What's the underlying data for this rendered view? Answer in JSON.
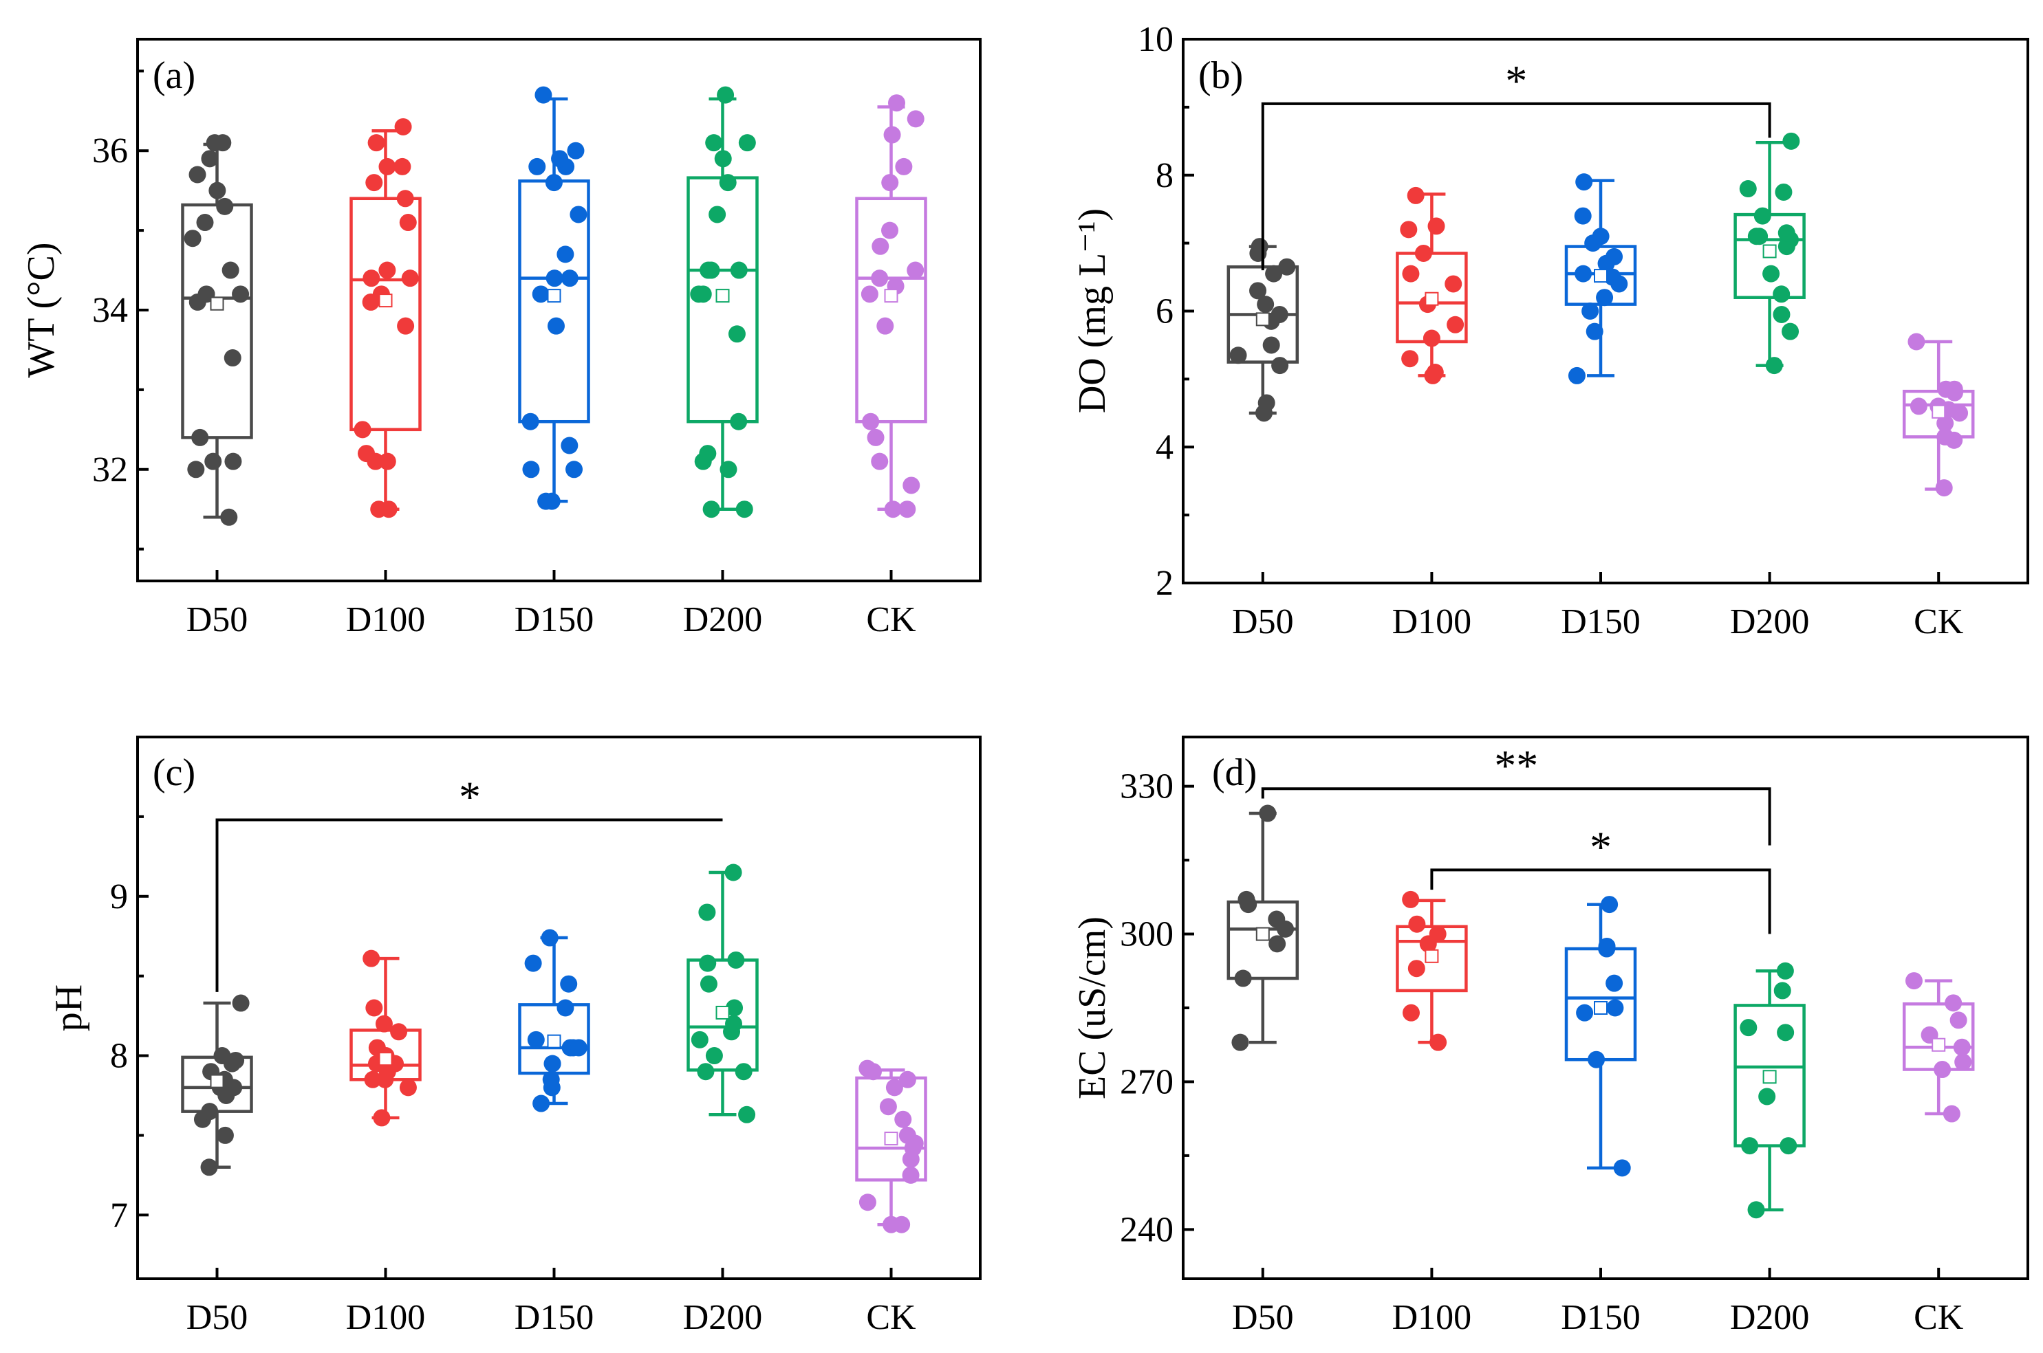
{
  "chart_data": [
    {
      "panel_label": "(a)",
      "type": "box",
      "ylabel": "WT (°C)",
      "ylim": [
        30.6,
        37.4
      ],
      "yticks": [
        32,
        34,
        36
      ],
      "categories": [
        "D50",
        "D100",
        "D150",
        "D200",
        "CK"
      ],
      "colors": [
        "#4a4a4a",
        "#f03a3a",
        "#0a67d8",
        "#0da866",
        "#c57ae0"
      ],
      "boxes": [
        {
          "whisker_low": 31.4,
          "q1": 32.4,
          "median": 34.15,
          "q3": 35.32,
          "whisker_high": 36.08,
          "mean": 34.08
        },
        {
          "whisker_low": 31.5,
          "q1": 32.5,
          "median": 34.38,
          "q3": 35.4,
          "whisker_high": 36.25,
          "mean": 34.12
        },
        {
          "whisker_low": 31.6,
          "q1": 32.6,
          "median": 34.4,
          "q3": 35.62,
          "whisker_high": 36.65,
          "mean": 34.18
        },
        {
          "whisker_low": 31.5,
          "q1": 32.6,
          "median": 34.5,
          "q3": 35.66,
          "whisker_high": 36.65,
          "mean": 34.18
        },
        {
          "whisker_low": 31.5,
          "q1": 32.6,
          "median": 34.4,
          "q3": 35.4,
          "whisker_high": 36.55,
          "mean": 34.18
        }
      ],
      "points": [
        [
          31.4,
          32.0,
          32.1,
          32.1,
          32.4,
          33.4,
          34.1,
          34.2,
          34.2,
          34.5,
          34.9,
          35.1,
          35.3,
          35.5,
          35.7,
          35.9,
          36.1,
          36.1
        ],
        [
          31.5,
          31.5,
          32.1,
          32.1,
          32.2,
          32.5,
          33.8,
          34.1,
          34.2,
          34.4,
          34.4,
          34.5,
          35.1,
          35.4,
          35.6,
          35.8,
          35.8,
          36.1,
          36.3
        ],
        [
          31.6,
          31.6,
          32.0,
          32.0,
          32.3,
          32.6,
          33.8,
          34.2,
          34.4,
          34.4,
          34.7,
          35.2,
          35.6,
          35.8,
          35.8,
          35.9,
          36.0,
          36.7
        ],
        [
          31.5,
          31.5,
          32.0,
          32.1,
          32.2,
          32.6,
          33.7,
          34.2,
          34.2,
          34.5,
          34.5,
          34.5,
          35.2,
          35.6,
          35.9,
          36.1,
          36.1,
          36.7
        ],
        [
          31.5,
          31.5,
          31.8,
          32.1,
          32.4,
          32.6,
          33.8,
          34.2,
          34.3,
          34.4,
          34.5,
          34.8,
          35.0,
          35.6,
          35.8,
          36.2,
          36.4,
          36.6
        ]
      ],
      "significance": []
    },
    {
      "panel_label": "(b)",
      "type": "box",
      "ylabel": "DO (mg L⁻¹)",
      "ylim": [
        2,
        10
      ],
      "yticks": [
        2,
        4,
        6,
        8,
        10
      ],
      "categories": [
        "D50",
        "D100",
        "D150",
        "D200",
        "CK"
      ],
      "colors": [
        "#4a4a4a",
        "#f03a3a",
        "#0a67d8",
        "#0da866",
        "#c57ae0"
      ],
      "boxes": [
        {
          "whisker_low": 4.5,
          "q1": 5.25,
          "median": 5.95,
          "q3": 6.65,
          "whisker_high": 6.95,
          "mean": 5.88
        },
        {
          "whisker_low": 5.05,
          "q1": 5.55,
          "median": 6.12,
          "q3": 6.85,
          "whisker_high": 7.72,
          "mean": 6.18
        },
        {
          "whisker_low": 5.05,
          "q1": 6.1,
          "median": 6.55,
          "q3": 6.95,
          "whisker_high": 7.92,
          "mean": 6.52
        },
        {
          "whisker_low": 5.2,
          "q1": 6.2,
          "median": 7.05,
          "q3": 7.42,
          "whisker_high": 8.48,
          "mean": 6.88
        },
        {
          "whisker_low": 3.38,
          "q1": 4.15,
          "median": 4.62,
          "q3": 4.82,
          "whisker_high": 5.55,
          "mean": 4.52
        }
      ],
      "points": [
        [
          4.5,
          4.65,
          5.2,
          5.35,
          5.5,
          5.85,
          5.95,
          6.1,
          6.3,
          6.55,
          6.65,
          6.85,
          6.95
        ],
        [
          5.05,
          5.1,
          5.3,
          5.6,
          5.8,
          6.1,
          6.4,
          6.55,
          6.85,
          7.2,
          7.25,
          7.7
        ],
        [
          5.05,
          5.7,
          6.0,
          6.2,
          6.4,
          6.5,
          6.55,
          6.7,
          6.8,
          7.0,
          7.1,
          7.4,
          7.9
        ],
        [
          5.2,
          5.7,
          5.95,
          6.25,
          6.55,
          6.95,
          7.05,
          7.1,
          7.1,
          7.15,
          7.4,
          7.75,
          7.8,
          8.5
        ],
        [
          3.4,
          4.1,
          4.15,
          4.35,
          4.5,
          4.55,
          4.6,
          4.6,
          4.8,
          4.85,
          4.85,
          5.55
        ]
      ],
      "significance": [
        {
          "from": "D50",
          "to": "D200",
          "label": "*",
          "level": 9.05,
          "from_start": 6.6,
          "to_start": 8.55
        }
      ]
    },
    {
      "panel_label": "(c)",
      "type": "box",
      "ylabel": "pH",
      "ylim": [
        6.6,
        10.0
      ],
      "yticks": [
        7,
        8,
        9
      ],
      "categories": [
        "D50",
        "D100",
        "D150",
        "D200",
        "CK"
      ],
      "colors": [
        "#4a4a4a",
        "#f03a3a",
        "#0a67d8",
        "#0da866",
        "#c57ae0"
      ],
      "boxes": [
        {
          "whisker_low": 7.3,
          "q1": 7.65,
          "median": 7.8,
          "q3": 7.99,
          "whisker_high": 8.33,
          "mean": 7.84
        },
        {
          "whisker_low": 7.61,
          "q1": 7.85,
          "median": 7.94,
          "q3": 8.16,
          "whisker_high": 8.61,
          "mean": 7.98
        },
        {
          "whisker_low": 7.7,
          "q1": 7.89,
          "median": 8.05,
          "q3": 8.32,
          "whisker_high": 8.74,
          "mean": 8.09
        },
        {
          "whisker_low": 7.63,
          "q1": 7.91,
          "median": 8.18,
          "q3": 8.6,
          "whisker_high": 9.15,
          "mean": 8.27
        },
        {
          "whisker_low": 6.94,
          "q1": 7.22,
          "median": 7.42,
          "q3": 7.86,
          "whisker_high": 7.91,
          "mean": 7.48
        }
      ],
      "points": [
        [
          7.3,
          7.5,
          7.6,
          7.65,
          7.75,
          7.8,
          7.8,
          7.85,
          7.9,
          7.95,
          7.97,
          8.0,
          8.33
        ],
        [
          7.61,
          7.8,
          7.85,
          7.85,
          7.9,
          7.95,
          7.95,
          8.0,
          8.05,
          8.15,
          8.2,
          8.3,
          8.61
        ],
        [
          7.7,
          7.8,
          7.85,
          7.95,
          7.95,
          8.05,
          8.05,
          8.05,
          8.1,
          8.3,
          8.45,
          8.58,
          8.74
        ],
        [
          7.63,
          7.9,
          7.9,
          8.0,
          8.1,
          8.15,
          8.2,
          8.3,
          8.45,
          8.58,
          8.6,
          8.9,
          9.15
        ],
        [
          6.94,
          6.94,
          7.08,
          7.25,
          7.35,
          7.42,
          7.45,
          7.5,
          7.6,
          7.68,
          7.8,
          7.85,
          7.9,
          7.92
        ]
      ],
      "significance": [
        {
          "from": "D50",
          "to": "D200",
          "label": "*",
          "level": 9.48,
          "from_start": 8.4,
          "to_start": 9.48
        }
      ]
    },
    {
      "panel_label": "(d)",
      "type": "box",
      "ylabel": "EC (uS/cm)",
      "ylim": [
        230,
        340
      ],
      "yticks": [
        240,
        270,
        300,
        330
      ],
      "categories": [
        "D50",
        "D100",
        "D150",
        "D200",
        "CK"
      ],
      "colors": [
        "#4a4a4a",
        "#f03a3a",
        "#0a67d8",
        "#0da866",
        "#c57ae0"
      ],
      "boxes": [
        {
          "whisker_low": 278,
          "q1": 291,
          "median": 301,
          "q3": 306.5,
          "whisker_high": 324.5,
          "mean": 300
        },
        {
          "whisker_low": 278,
          "q1": 288.5,
          "median": 298.5,
          "q3": 301.5,
          "whisker_high": 306.8,
          "mean": 295.5
        },
        {
          "whisker_low": 252.5,
          "q1": 274.5,
          "median": 287,
          "q3": 297,
          "whisker_high": 306,
          "mean": 285
        },
        {
          "whisker_low": 244,
          "q1": 257,
          "median": 273,
          "q3": 285.5,
          "whisker_high": 292.5,
          "mean": 271
        },
        {
          "whisker_low": 263.5,
          "q1": 272.5,
          "median": 277,
          "q3": 285.8,
          "whisker_high": 290.5,
          "mean": 277.5
        }
      ],
      "points": [
        [
          278,
          291,
          298,
          301,
          303,
          306,
          307,
          324.5
        ],
        [
          278,
          284,
          293,
          298,
          300,
          302,
          307
        ],
        [
          252.5,
          274.5,
          284,
          285,
          290,
          297,
          297.5,
          306
        ],
        [
          244,
          257,
          257,
          267,
          280,
          281,
          288.5,
          292.5
        ],
        [
          263.5,
          272.5,
          274,
          277,
          279.5,
          282.5,
          286,
          290.5
        ]
      ],
      "significance": [
        {
          "from": "D50",
          "to": "D200",
          "label": "**",
          "level": 329.5,
          "from_start": 327.5,
          "to_start": 318
        },
        {
          "from": "D100",
          "to": "D200",
          "label": "*",
          "level": 313,
          "from_start": 309,
          "to_start": 300
        }
      ]
    }
  ]
}
